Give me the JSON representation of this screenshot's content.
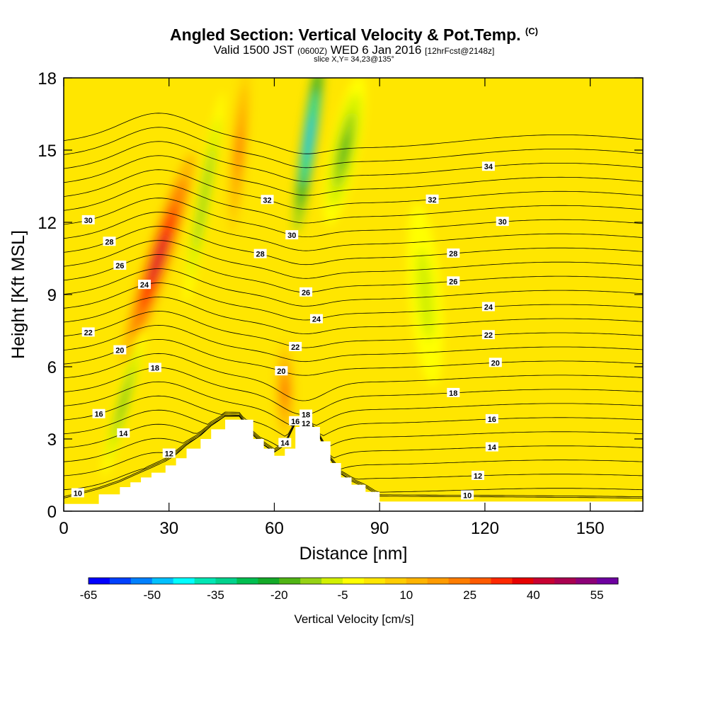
{
  "header": {
    "title": "Angled Section: Vertical Velocity & Pot.Temp.",
    "title_badge": "(C)",
    "subtitle_a": "Valid 1500 JST",
    "subtitle_b": "(0600Z)",
    "subtitle_c": "WED 6 Jan 2016",
    "subtitle_d": "[12hrFcst@2148z]",
    "slice": "slice X,Y= 34,23@135°"
  },
  "chart_data": {
    "type": "heatmap",
    "xlabel": "Distance [nm]",
    "ylabel": "Height [Kft MSL]",
    "xlim": [
      0,
      165
    ],
    "ylim": [
      0,
      18
    ],
    "x_ticks": [
      0,
      30,
      60,
      90,
      120,
      150
    ],
    "y_ticks": [
      0,
      3,
      6,
      9,
      12,
      15,
      18
    ],
    "colorbar": {
      "label": "Vertical Velocity [cm/s]",
      "tick_labels": [
        -65,
        -50,
        -35,
        -20,
        -5,
        10,
        25,
        40,
        55
      ],
      "bins": [
        -65,
        -60,
        -55,
        -50,
        -45,
        -40,
        -35,
        -30,
        -25,
        -20,
        -15,
        -10,
        -5,
        0,
        5,
        10,
        15,
        20,
        25,
        30,
        35,
        40,
        45,
        50,
        55,
        60
      ],
      "colors": [
        "#0000ff",
        "#0040ff",
        "#0080ff",
        "#00c0ff",
        "#00ffff",
        "#00e6b4",
        "#00d28c",
        "#00be50",
        "#14aa28",
        "#50b414",
        "#96d214",
        "#d2f000",
        "#ffff00",
        "#ffe600",
        "#ffcd00",
        "#ffb400",
        "#ff9b00",
        "#ff7d00",
        "#ff5a00",
        "#ff2800",
        "#e60000",
        "#c80032",
        "#aa0050",
        "#8c0078",
        "#6e00a0"
      ]
    },
    "terrain_profile": {
      "x": [
        0,
        10,
        16,
        19,
        22,
        25,
        29,
        32,
        35,
        39,
        42,
        46,
        50,
        54,
        57,
        60,
        63,
        66,
        70,
        73,
        76,
        79,
        82,
        86,
        90,
        165
      ],
      "height": [
        0.3,
        0.7,
        1.0,
        1.2,
        1.4,
        1.6,
        1.9,
        2.2,
        2.6,
        3.0,
        3.4,
        3.8,
        3.8,
        3.0,
        2.6,
        2.3,
        2.6,
        3.5,
        3.5,
        2.9,
        2.0,
        1.4,
        1.1,
        0.8,
        0.4,
        0.3
      ]
    },
    "theta_isolines_labeled": [
      {
        "value": 10,
        "label_x": [
          4,
          115
        ]
      },
      {
        "value": 12,
        "label_x": [
          30,
          69,
          118
        ]
      },
      {
        "value": 14,
        "label_x": [
          17,
          63,
          122
        ]
      },
      {
        "value": 16,
        "label_x": [
          10,
          66,
          122
        ]
      },
      {
        "value": 18,
        "label_x": [
          26,
          69,
          111
        ]
      },
      {
        "value": 20,
        "label_x": [
          16,
          62,
          123
        ]
      },
      {
        "value": 22,
        "label_x": [
          7,
          66,
          121
        ]
      },
      {
        "value": 24,
        "label_x": [
          23,
          72,
          121
        ]
      },
      {
        "value": 26,
        "label_x": [
          16,
          69,
          111
        ]
      },
      {
        "value": 28,
        "label_x": [
          13,
          56,
          111
        ]
      },
      {
        "value": 30,
        "label_x": [
          7,
          65,
          125
        ]
      },
      {
        "value": 32,
        "label_x": [
          58,
          105
        ]
      },
      {
        "value": 34,
        "label_x": [
          121
        ]
      }
    ],
    "velocity_features": [
      {
        "name": "updraft",
        "x": 27,
        "y": 10.5,
        "peak": 40
      },
      {
        "name": "downdraft",
        "x": 70,
        "y": 15.5,
        "peak": -50
      },
      {
        "name": "downdraft",
        "x": 17,
        "y": 4.5,
        "peak": -20
      },
      {
        "name": "downdraft",
        "x": 80,
        "y": 15,
        "peak": -20
      },
      {
        "name": "downdraft",
        "x": 103,
        "y": 9,
        "peak": -10
      },
      {
        "name": "downdraft",
        "x": 40,
        "y": 13,
        "peak": -15
      },
      {
        "name": "updraft",
        "x": 50,
        "y": 15,
        "peak": 25
      },
      {
        "name": "updraft",
        "x": 63,
        "y": 5,
        "peak": 25
      }
    ]
  }
}
